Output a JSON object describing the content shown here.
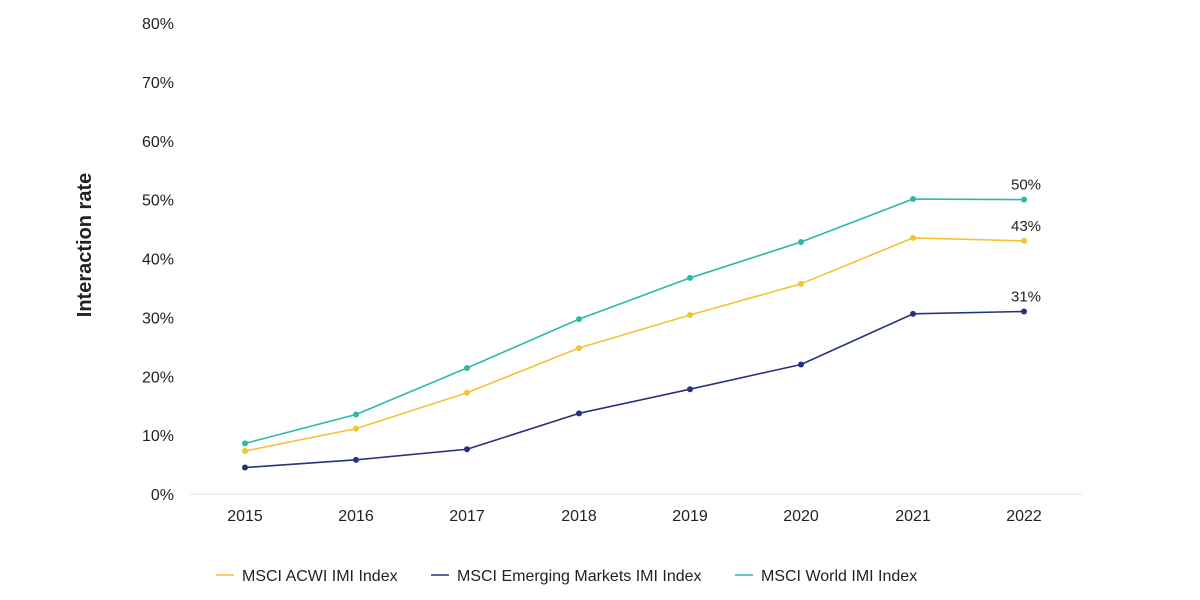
{
  "chart_data": {
    "type": "line",
    "ylabel": "Interaction rate",
    "xlabel": "",
    "categories": [
      "2015",
      "2016",
      "2017",
      "2018",
      "2019",
      "2020",
      "2021",
      "2022"
    ],
    "y_ticks": [
      "0%",
      "10%",
      "20%",
      "30%",
      "40%",
      "50%",
      "60%",
      "70%",
      "80%"
    ],
    "ylim": [
      0,
      80
    ],
    "grid": false,
    "legend_position": "bottom",
    "series": [
      {
        "name": "MSCI ACWI IMI Index",
        "color": "#f5c231",
        "values": [
          7.3,
          11.1,
          17.2,
          24.8,
          30.4,
          35.7,
          43.5,
          43.0
        ],
        "end_label": "43%"
      },
      {
        "name": "MSCI Emerging Markets IMI Index",
        "color": "#26327d",
        "values": [
          4.5,
          5.8,
          7.6,
          13.7,
          17.8,
          22.0,
          30.6,
          31.0
        ],
        "end_label": "31%"
      },
      {
        "name": "MSCI World IMI Index",
        "color": "#2bb9a8",
        "values": [
          8.6,
          13.5,
          21.4,
          29.7,
          36.7,
          42.8,
          50.1,
          50.0
        ],
        "end_label": "50%"
      }
    ]
  }
}
